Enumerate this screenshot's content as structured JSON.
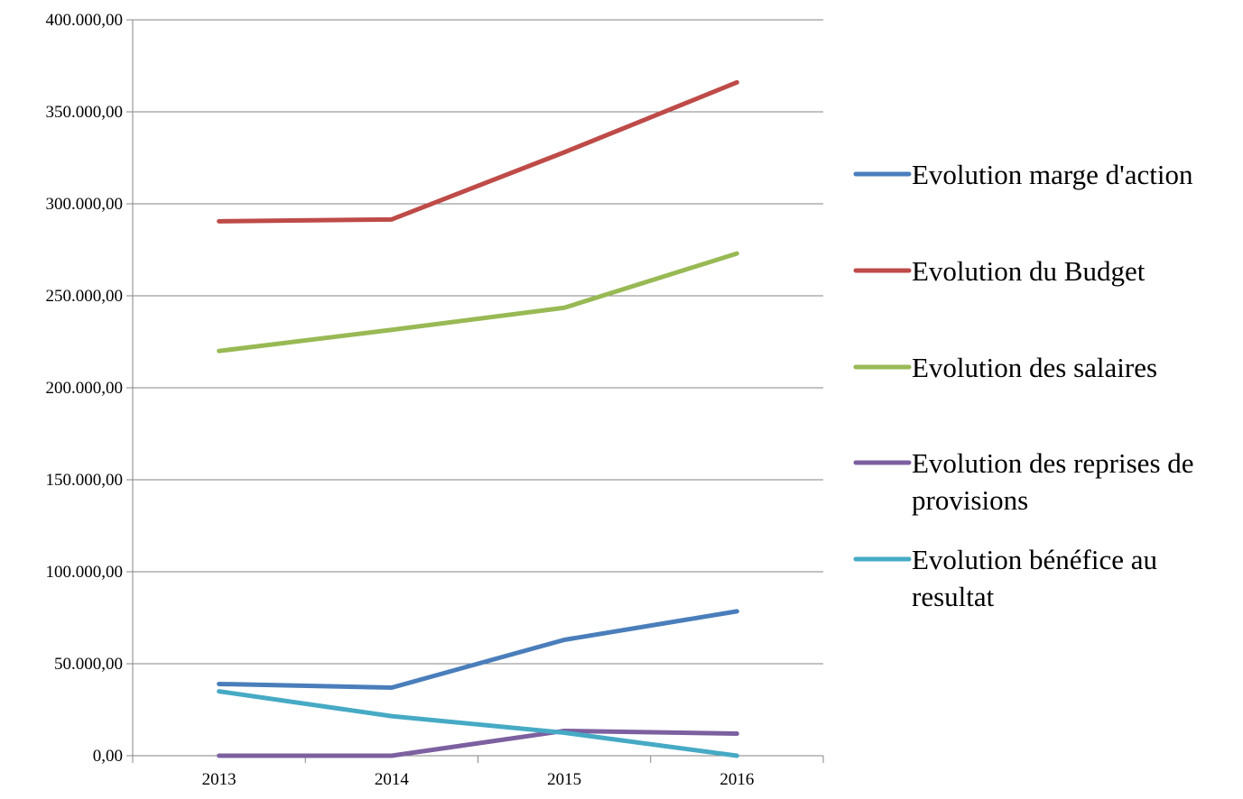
{
  "chart_data": {
    "type": "line",
    "title": "",
    "xlabel": "",
    "ylabel": "",
    "categories": [
      "2013",
      "2014",
      "2015",
      "2016"
    ],
    "ylim": [
      0,
      400000
    ],
    "y_ticks": [
      0,
      50000,
      100000,
      150000,
      200000,
      250000,
      300000,
      350000,
      400000
    ],
    "y_tick_labels": [
      "0,00",
      "50.000,00",
      "100.000,00",
      "150.000,00",
      "200.000,00",
      "250.000,00",
      "300.000,00",
      "350.000,00",
      "400.000,00"
    ],
    "grid": "horizontal",
    "legend_position": "right",
    "series": [
      {
        "name": "Evolution marge d'action",
        "legend_lines": [
          "Evolution marge d'action"
        ],
        "color": "#4A7EBB",
        "values": [
          39000,
          37000,
          63000,
          78500
        ]
      },
      {
        "name": "Evolution du Budget",
        "legend_lines": [
          "Evolution du Budget"
        ],
        "color": "#BE4B48",
        "values": [
          290500,
          291500,
          328000,
          366000
        ]
      },
      {
        "name": "Evolution des salaires",
        "legend_lines": [
          "Evolution des salaires"
        ],
        "color": "#98B954",
        "values": [
          220000,
          231500,
          243500,
          273000
        ]
      },
      {
        "name": "Evolution des reprises de provisions",
        "legend_lines": [
          "Evolution des reprises de",
          "provisions"
        ],
        "color": "#7D60A0",
        "values": [
          0,
          0,
          13500,
          12000
        ]
      },
      {
        "name": "Evolution bénéfice au resultat",
        "legend_lines": [
          "Evolution bénéfice au",
          "resultat"
        ],
        "color": "#46AAC5",
        "values": [
          35000,
          21500,
          12500,
          0
        ]
      }
    ]
  }
}
